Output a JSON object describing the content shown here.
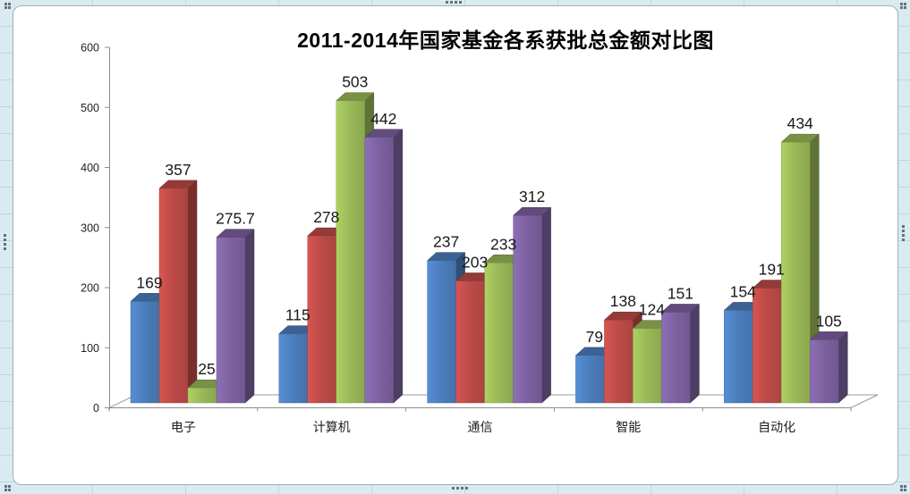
{
  "palette": {
    "workbook_bg": "#D9EBF1",
    "workbook_grid": "#BCD8DF",
    "panel_bg": "#FFFFFF",
    "panel_border": "#A3AEB5",
    "axis_line": "#8C8C8C",
    "floor_line": "#9B9B9B",
    "text": "#1F1F1F",
    "handle_dot": "#66707A"
  },
  "chart_data": {
    "type": "bar",
    "style": "3d-clustered-column",
    "title": "2011-2014年国家基金各系获批总金额对比图",
    "categories": [
      "电子",
      "计算机",
      "通信",
      "智能",
      "自动化"
    ],
    "series": [
      {
        "color": "#4C7EBD",
        "values": [
          169,
          115,
          237,
          79,
          154
        ]
      },
      {
        "color": "#BE4B48",
        "values": [
          357,
          278,
          203,
          138,
          191
        ]
      },
      {
        "color": "#9ABA58",
        "values": [
          25,
          503,
          233,
          124,
          434
        ]
      },
      {
        "color": "#7E62A1",
        "values": [
          275.7,
          442,
          312,
          151,
          105
        ]
      }
    ],
    "ylim": [
      0,
      600
    ],
    "ytick_step": 100,
    "yticks": [
      "0",
      "100",
      "200",
      "300",
      "400",
      "500",
      "600"
    ],
    "grid": false,
    "legend": false
  }
}
